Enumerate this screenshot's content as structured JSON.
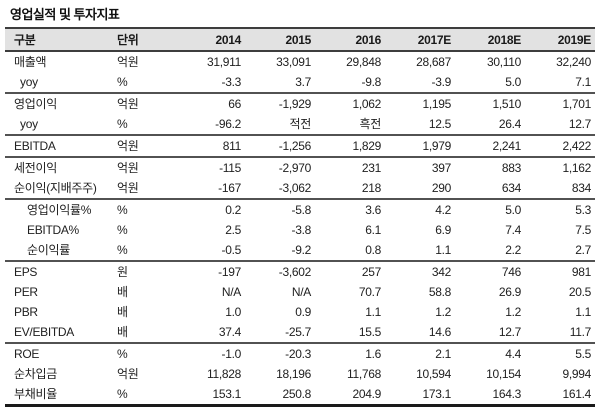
{
  "title": "영업실적 및 투자지표",
  "colors": {
    "header_bg": "#e2e2e2",
    "border_dark": "#3d3d3d",
    "border_group": "#525252",
    "text": "#212121"
  },
  "table": {
    "columns": [
      "구분",
      "단위",
      "2014",
      "2015",
      "2016",
      "2017E",
      "2018E",
      "2019E"
    ],
    "rows": [
      {
        "label": "매출액",
        "unit": "억원",
        "indent": 0,
        "sep_below": false,
        "values": [
          "31,911",
          "33,091",
          "29,848",
          "28,687",
          "30,110",
          "32,240"
        ]
      },
      {
        "label": "yoy",
        "unit": "%",
        "indent": 1,
        "sep_below": true,
        "values": [
          "-3.3",
          "3.7",
          "-9.8",
          "-3.9",
          "5.0",
          "7.1"
        ]
      },
      {
        "label": "영업이익",
        "unit": "억원",
        "indent": 0,
        "sep_below": false,
        "values": [
          "66",
          "-1,929",
          "1,062",
          "1,195",
          "1,510",
          "1,701"
        ]
      },
      {
        "label": "yoy",
        "unit": "%",
        "indent": 1,
        "sep_below": true,
        "values": [
          "-96.2",
          "적전",
          "흑전",
          "12.5",
          "26.4",
          "12.7"
        ]
      },
      {
        "label": "EBITDA",
        "unit": "억원",
        "indent": 0,
        "sep_below": true,
        "values": [
          "811",
          "-1,256",
          "1,829",
          "1,979",
          "2,241",
          "2,422"
        ]
      },
      {
        "label": "세전이익",
        "unit": "억원",
        "indent": 0,
        "sep_below": false,
        "values": [
          "-115",
          "-2,970",
          "231",
          "397",
          "883",
          "1,162"
        ]
      },
      {
        "label": "순이익(지배주주)",
        "unit": "억원",
        "indent": 0,
        "sep_below": true,
        "values": [
          "-167",
          "-3,062",
          "218",
          "290",
          "634",
          "834"
        ]
      },
      {
        "label": "영업이익률%",
        "unit": "%",
        "indent": 2,
        "sep_below": false,
        "values": [
          "0.2",
          "-5.8",
          "3.6",
          "4.2",
          "5.0",
          "5.3"
        ]
      },
      {
        "label": "EBITDA%",
        "unit": "%",
        "indent": 2,
        "sep_below": false,
        "values": [
          "2.5",
          "-3.8",
          "6.1",
          "6.9",
          "7.4",
          "7.5"
        ]
      },
      {
        "label": "순이익률",
        "unit": "%",
        "indent": 2,
        "sep_below": true,
        "values": [
          "-0.5",
          "-9.2",
          "0.8",
          "1.1",
          "2.2",
          "2.7"
        ]
      },
      {
        "label": "EPS",
        "unit": "원",
        "indent": 0,
        "sep_below": false,
        "values": [
          "-197",
          "-3,602",
          "257",
          "342",
          "746",
          "981"
        ]
      },
      {
        "label": "PER",
        "unit": "배",
        "indent": 0,
        "sep_below": false,
        "values": [
          "N/A",
          "N/A",
          "70.7",
          "58.8",
          "26.9",
          "20.5"
        ]
      },
      {
        "label": "PBR",
        "unit": "배",
        "indent": 0,
        "sep_below": false,
        "values": [
          "1.0",
          "0.9",
          "1.1",
          "1.2",
          "1.2",
          "1.1"
        ]
      },
      {
        "label": "EV/EBITDA",
        "unit": "배",
        "indent": 0,
        "sep_below": true,
        "values": [
          "37.4",
          "-25.7",
          "15.5",
          "14.6",
          "12.7",
          "11.7"
        ]
      },
      {
        "label": "ROE",
        "unit": "%",
        "indent": 0,
        "sep_below": false,
        "values": [
          "-1.0",
          "-20.3",
          "1.6",
          "2.1",
          "4.4",
          "5.5"
        ]
      },
      {
        "label": "순차입금",
        "unit": "억원",
        "indent": 0,
        "sep_below": false,
        "values": [
          "11,828",
          "18,196",
          "11,768",
          "10,594",
          "10,154",
          "9,994"
        ]
      },
      {
        "label": "부채비율",
        "unit": "%",
        "indent": 0,
        "sep_below": false,
        "values": [
          "153.1",
          "250.8",
          "204.9",
          "173.1",
          "164.3",
          "161.4"
        ]
      }
    ]
  }
}
